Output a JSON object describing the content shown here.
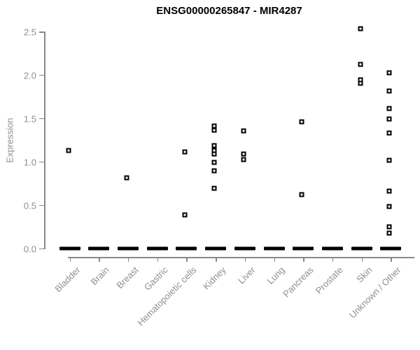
{
  "chart_data": {
    "type": "scatter",
    "title": "ENSG00000265847 - MIR4287",
    "ylabel": "Expression",
    "xlabel": "",
    "ylim": [
      0.0,
      2.5
    ],
    "yticks": [
      "0.0",
      "0.5",
      "1.0",
      "1.5",
      "2.0",
      "2.5"
    ],
    "ytick_values": [
      0.0,
      0.5,
      1.0,
      1.5,
      2.0,
      2.5
    ],
    "grid": "off",
    "legend": "none",
    "marker": "open-square",
    "categories": [
      "Bladder",
      "Brain",
      "Breast",
      "Gastric",
      "Hematopoietic cells",
      "Kidney",
      "Liver",
      "Lung",
      "Pancreas",
      "Prostate",
      "Skin",
      "Unknown / Other"
    ],
    "series": [
      {
        "category": "Bladder",
        "values": [
          1.13
        ],
        "zero_cluster": true
      },
      {
        "category": "Brain",
        "values": [],
        "zero_cluster": true
      },
      {
        "category": "Breast",
        "values": [
          0.81
        ],
        "zero_cluster": true
      },
      {
        "category": "Gastric",
        "values": [],
        "zero_cluster": true
      },
      {
        "category": "Hematopoietic cells",
        "values": [
          1.11,
          0.38
        ],
        "zero_cluster": true
      },
      {
        "category": "Kidney",
        "values": [
          1.41,
          1.36,
          1.18,
          1.13,
          1.09,
          0.99,
          0.89,
          0.69
        ],
        "zero_cluster": true
      },
      {
        "category": "Liver",
        "values": [
          1.35,
          1.09,
          1.02
        ],
        "zero_cluster": true
      },
      {
        "category": "Lung",
        "values": [],
        "zero_cluster": true
      },
      {
        "category": "Pancreas",
        "values": [
          1.46,
          0.62
        ],
        "zero_cluster": true
      },
      {
        "category": "Prostate",
        "values": [],
        "zero_cluster": true
      },
      {
        "category": "Skin",
        "values": [
          2.53,
          2.12,
          1.94,
          1.9
        ],
        "zero_cluster": true
      },
      {
        "category": "Unknown / Other",
        "values": [
          2.02,
          1.81,
          1.61,
          1.49,
          1.33,
          1.01,
          0.66,
          0.48,
          0.25,
          0.17
        ],
        "zero_cluster": true
      }
    ],
    "colors": {
      "marker": "#000000",
      "axis": "#888888",
      "tick_label": "#8c8f93",
      "title": "#000000",
      "background": "#ffffff"
    }
  }
}
